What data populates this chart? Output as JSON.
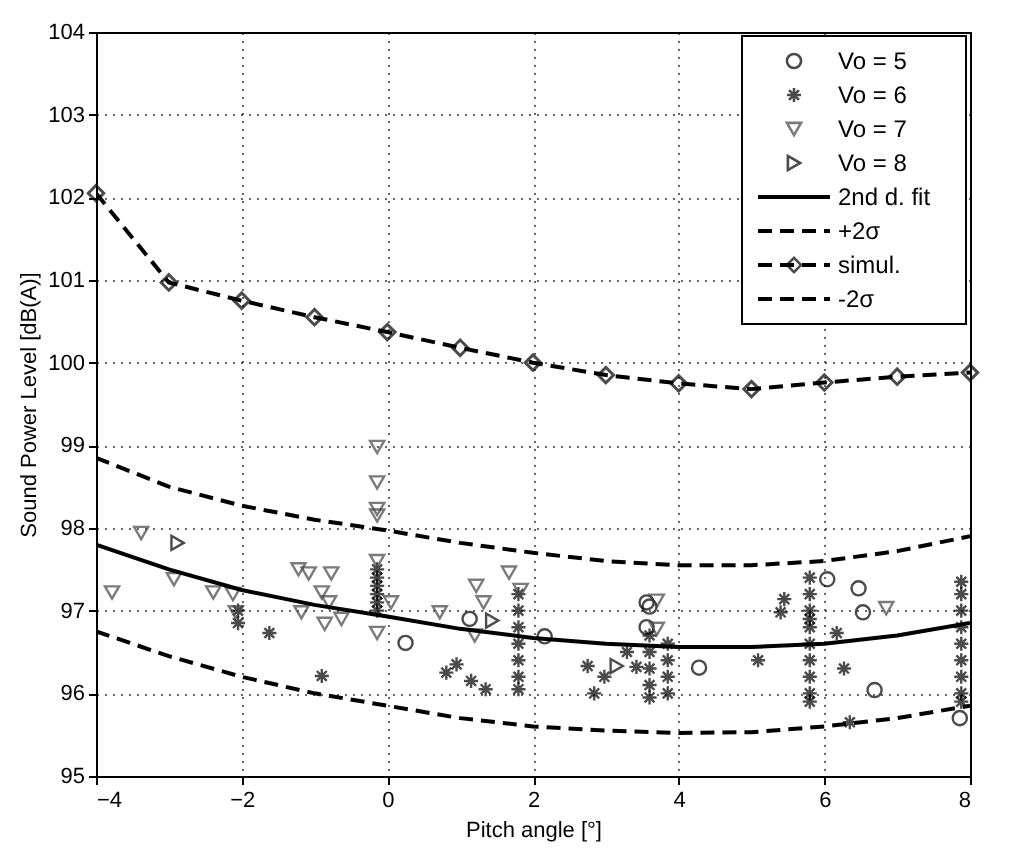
{
  "chart_data": {
    "type": "scatter",
    "xlabel": "Pitch angle [°]",
    "ylabel": "Sound Power Level [dB(A)]",
    "xlim": [
      -4,
      8
    ],
    "xticks": [
      -4,
      -2,
      0,
      2,
      4,
      6,
      8
    ],
    "ylim": [
      95,
      104
    ],
    "yticks": [
      95,
      96,
      97,
      98,
      99,
      100,
      101,
      102,
      103,
      104
    ],
    "grid": true,
    "legend": "top right",
    "series": [
      {
        "name": "Vo = 5",
        "marker": "circle",
        "color": "#000000",
        "x": [
          0.25,
          1.13,
          2.16,
          3.6,
          3.56,
          3.56,
          4.28,
          6.04,
          6.47,
          6.53,
          6.69,
          7.86
        ],
        "values": [
          96.61,
          96.9,
          96.69,
          97.05,
          97.1,
          96.8,
          96.31,
          97.38,
          97.27,
          96.98,
          96.04,
          95.7
        ]
      },
      {
        "name": "Vo = 6",
        "marker": "cross",
        "color": "#000000",
        "x": [
          -2.05,
          -2.05,
          -1.62,
          -0.9,
          -0.14,
          -0.14,
          -0.14,
          -0.14,
          -0.14,
          -0.14,
          0.81,
          0.95,
          1.15,
          1.35,
          1.8,
          1.8,
          1.8,
          1.8,
          1.8,
          1.8,
          1.8,
          2.75,
          2.84,
          2.98,
          3.29,
          3.42,
          3.6,
          3.6,
          3.6,
          3.6,
          3.6,
          3.85,
          3.85,
          3.85,
          3.85,
          5.09,
          5.4,
          5.45,
          5.8,
          5.8,
          5.8,
          5.8,
          5.8,
          5.8,
          5.8,
          5.8,
          5.8,
          5.8,
          6.17,
          6.27,
          6.35,
          7.88,
          7.88,
          7.88,
          7.88,
          7.88,
          7.88,
          7.88,
          7.88,
          7.88
        ],
        "values": [
          97.0,
          96.85,
          96.73,
          96.21,
          97.0,
          97.1,
          97.2,
          97.3,
          97.4,
          97.5,
          96.25,
          96.35,
          96.15,
          96.05,
          97.2,
          97.0,
          96.8,
          96.6,
          96.4,
          96.2,
          96.05,
          96.33,
          96.0,
          96.2,
          96.5,
          96.32,
          96.7,
          96.5,
          96.3,
          96.1,
          95.95,
          96.6,
          96.4,
          96.2,
          96.0,
          96.4,
          96.98,
          97.14,
          97.4,
          97.2,
          97.0,
          96.9,
          96.8,
          96.6,
          96.4,
          96.2,
          96.0,
          95.9,
          96.73,
          96.3,
          95.65,
          97.35,
          97.2,
          97.0,
          96.8,
          96.6,
          96.4,
          96.2,
          96.0,
          95.9
        ]
      },
      {
        "name": "Vo = 7",
        "marker": "triangle-down",
        "color": "#444444",
        "x": [
          -3.78,
          -3.38,
          -2.93,
          -2.39,
          -2.12,
          -2.08,
          -1.22,
          -1.08,
          -0.77,
          -0.9,
          -0.8,
          -1.18,
          -0.86,
          -0.63,
          -0.14,
          -0.14,
          -0.14,
          -0.14,
          -0.14,
          -0.14,
          0.05,
          0.72,
          1.22,
          1.32,
          1.67,
          1.83,
          1.2,
          3.7,
          3.7,
          6.85
        ],
        "values": [
          97.22,
          97.94,
          97.38,
          97.22,
          97.2,
          96.98,
          97.5,
          97.45,
          97.45,
          97.22,
          97.1,
          96.98,
          96.84,
          96.9,
          98.98,
          98.55,
          98.23,
          98.15,
          97.6,
          96.73,
          97.1,
          96.98,
          97.3,
          97.1,
          97.46,
          97.25,
          96.7,
          97.12,
          96.78,
          97.03
        ]
      },
      {
        "name": "Vo = 8",
        "marker": "triangle-right",
        "color": "#000000",
        "x": [
          -2.88,
          1.44,
          3.15
        ],
        "values": [
          97.82,
          96.88,
          96.33
        ]
      },
      {
        "name": "2nd d. fit",
        "type": "line",
        "marker": "none",
        "line_style": "solid",
        "color": "#000000",
        "x": [
          -4,
          -3,
          -2,
          -1,
          0,
          1,
          2,
          3,
          4,
          5,
          6,
          7,
          8
        ],
        "values": [
          97.8,
          97.5,
          97.25,
          97.07,
          96.93,
          96.78,
          96.67,
          96.6,
          96.56,
          96.56,
          96.6,
          96.7,
          96.85
        ]
      },
      {
        "name": "+2σ",
        "type": "line",
        "marker": "none",
        "line_style": "dashed",
        "color": "#000000",
        "x": [
          -4,
          -3,
          -2,
          -1,
          0,
          1,
          2,
          3,
          4,
          5,
          6,
          7,
          8
        ],
        "values": [
          98.85,
          98.5,
          98.27,
          98.1,
          97.97,
          97.82,
          97.7,
          97.6,
          97.55,
          97.55,
          97.6,
          97.72,
          97.9
        ]
      },
      {
        "name": "simul.",
        "type": "line",
        "marker": "diamond",
        "line_style": "dashed",
        "color": "#000000",
        "x": [
          -4,
          -3,
          -2,
          -1,
          0,
          1,
          2,
          3,
          4,
          5,
          6,
          7,
          8
        ],
        "values": [
          102.05,
          100.97,
          100.75,
          100.55,
          100.37,
          100.18,
          100.0,
          99.85,
          99.75,
          99.68,
          99.76,
          99.83,
          99.88
        ]
      },
      {
        "name": "-2σ",
        "type": "line",
        "marker": "none",
        "line_style": "dashed",
        "color": "#000000",
        "x": [
          -4,
          -3,
          -2,
          -1,
          0,
          1,
          2,
          3,
          4,
          5,
          6,
          7,
          8
        ],
        "values": [
          96.75,
          96.45,
          96.2,
          96.0,
          95.85,
          95.7,
          95.6,
          95.55,
          95.52,
          95.53,
          95.6,
          95.7,
          95.85
        ]
      }
    ]
  }
}
